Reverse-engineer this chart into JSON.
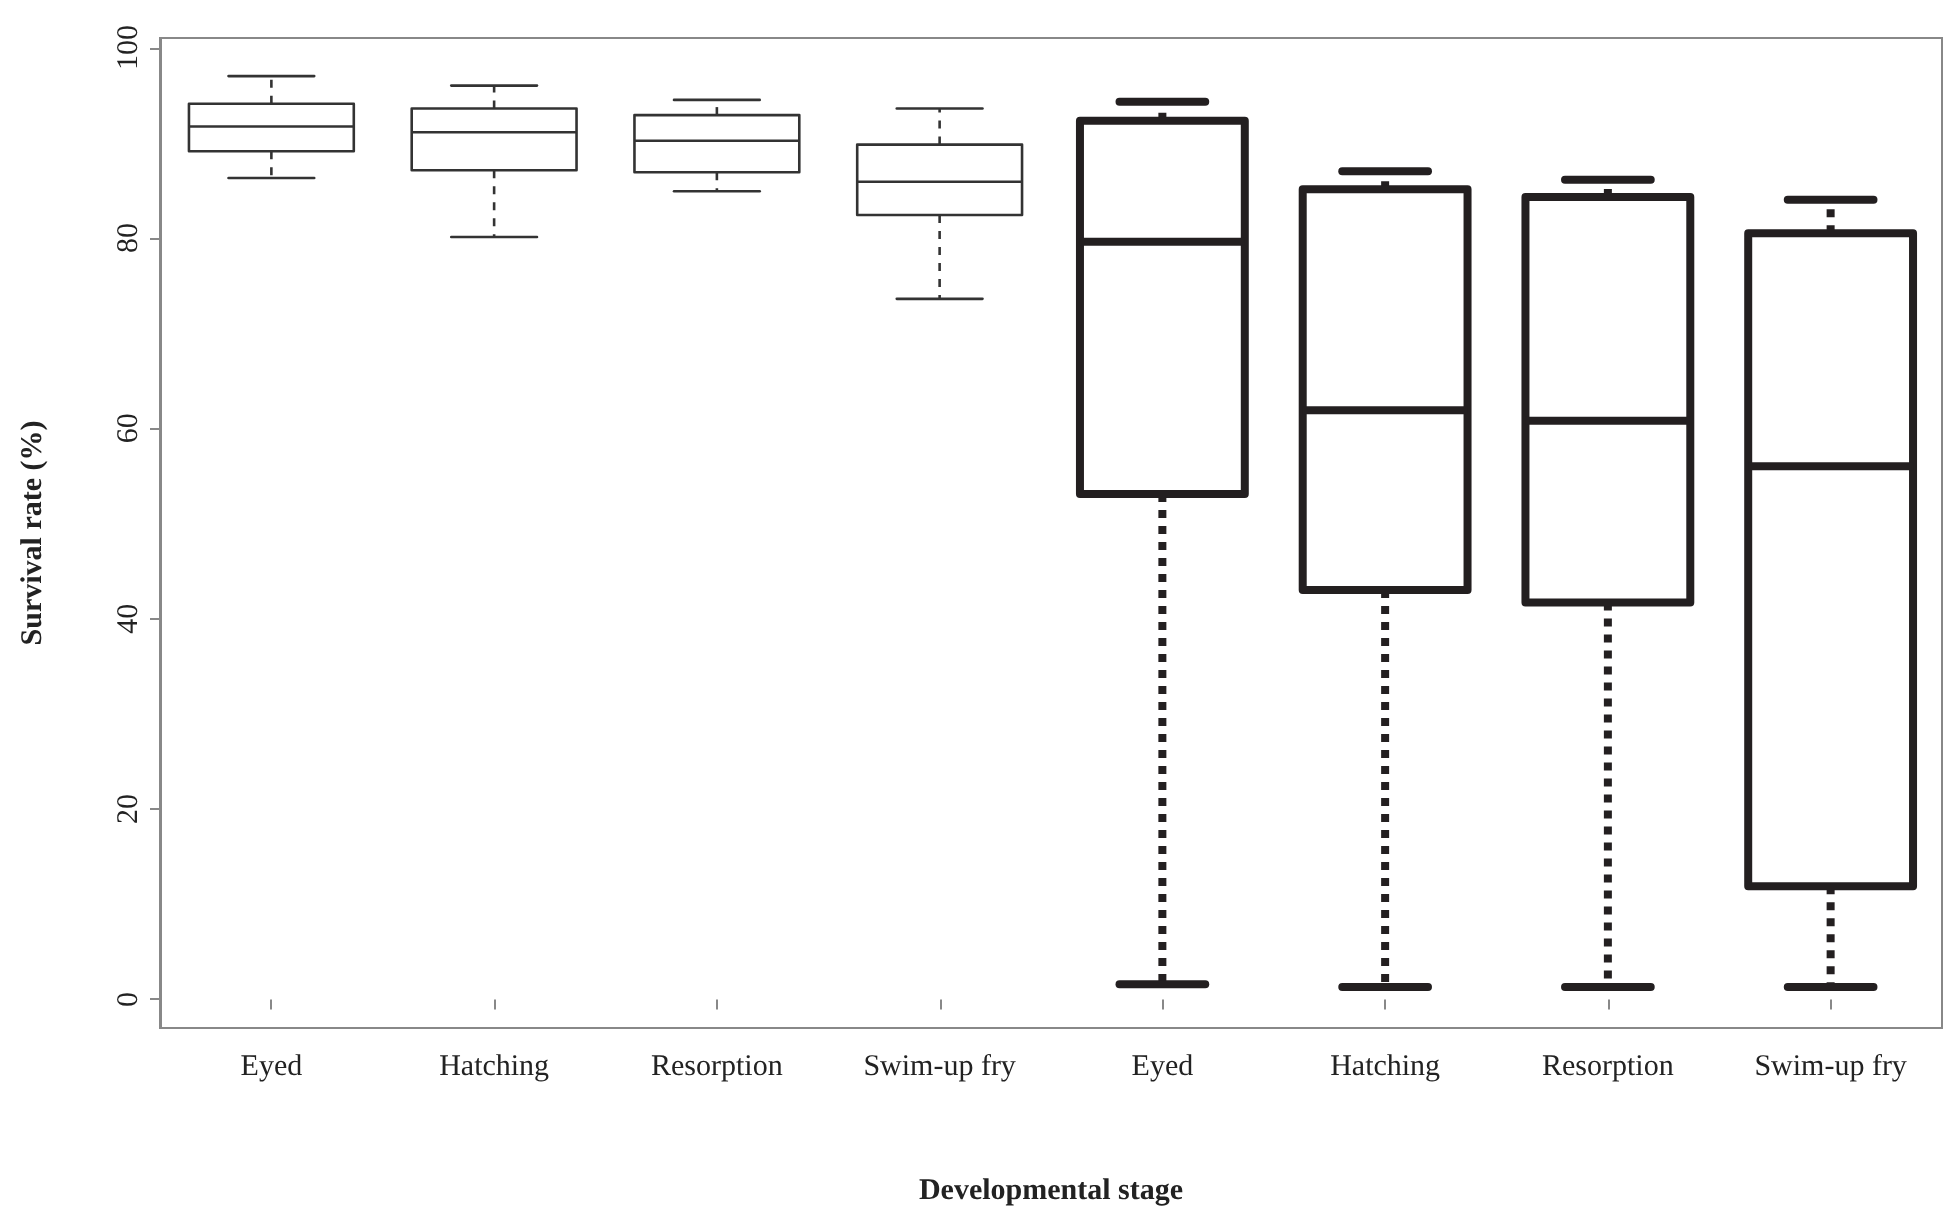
{
  "chart_data": {
    "type": "box",
    "xlabel": "Developmental stage",
    "ylabel": "Survival rate (%)",
    "categories": [
      "Eyed",
      "Hatching",
      "Resorption",
      "Swim-up fry",
      "Eyed",
      "Hatching",
      "Resorption",
      "Swim-up fry"
    ],
    "ylim": [
      -3,
      101
    ],
    "yticks": [
      0,
      20,
      40,
      60,
      80,
      100
    ],
    "grid": false,
    "line_style": "dashed",
    "series": [
      {
        "color": "#333333",
        "boxes": [
          {
            "low": 86.3,
            "q1": 89.1,
            "median": 91.7,
            "q3": 94.1,
            "high": 97.0
          },
          {
            "low": 80.1,
            "q1": 87.1,
            "median": 91.1,
            "q3": 93.6,
            "high": 96.0
          },
          {
            "low": 84.9,
            "q1": 86.9,
            "median": 90.2,
            "q3": 92.9,
            "high": 94.5
          },
          {
            "low": 73.6,
            "q1": 82.4,
            "median": 85.9,
            "q3": 89.8,
            "high": 93.6
          },
          null,
          null,
          null,
          null
        ]
      },
      {
        "color": "#231f20",
        "boxes": [
          null,
          null,
          null,
          null,
          {
            "low": 1.6,
            "q1": 53.1,
            "median": 79.6,
            "q3": 92.3,
            "high": 94.3
          },
          {
            "low": 1.3,
            "q1": 43.0,
            "median": 61.9,
            "q3": 85.1,
            "high": 87.0
          },
          {
            "low": 1.3,
            "q1": 41.7,
            "median": 60.8,
            "q3": 84.3,
            "high": 86.1
          },
          {
            "low": 1.3,
            "q1": 11.9,
            "median": 56.0,
            "q3": 80.5,
            "high": 84.0
          }
        ]
      }
    ]
  }
}
